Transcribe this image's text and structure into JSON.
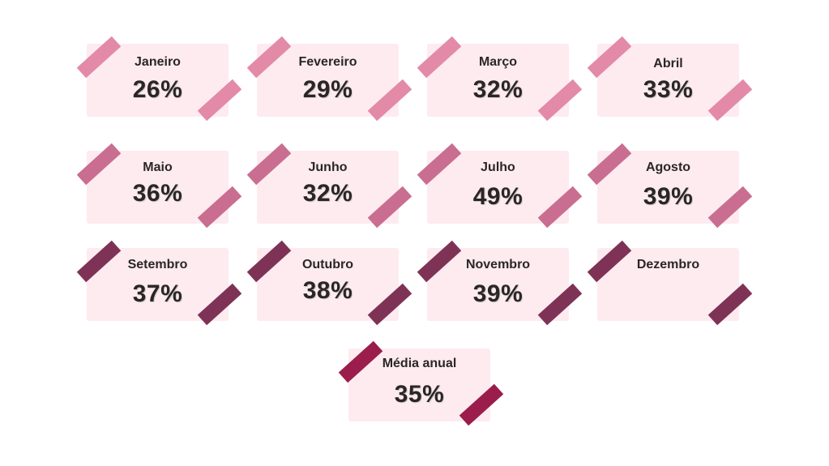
{
  "cards": [
    {
      "label": "Janeiro",
      "value": "26%"
    },
    {
      "label": "Fevereiro",
      "value": "29%"
    },
    {
      "label": "Março",
      "value": "32%"
    },
    {
      "label": "Abril",
      "value": "33%"
    },
    {
      "label": "Maio",
      "value": "36%"
    },
    {
      "label": "Junho",
      "value": "32%"
    },
    {
      "label": "Julho",
      "value": "49%"
    },
    {
      "label": "Agosto",
      "value": "39%"
    },
    {
      "label": "Setembro",
      "value": "37%"
    },
    {
      "label": "Outubro",
      "value": "38%"
    },
    {
      "label": "Novembro",
      "value": "39%"
    },
    {
      "label": "Dezembro",
      "value": ""
    }
  ],
  "summary": {
    "label": "Média anual",
    "value": "35%"
  },
  "colors": {
    "card_background": "#fdebf0",
    "text": "#2b2626",
    "tape_row1": "#e38aa8",
    "tape_row2": "#c96e90",
    "tape_row3": "#7e3356",
    "tape_summary": "#9b1d4b"
  }
}
